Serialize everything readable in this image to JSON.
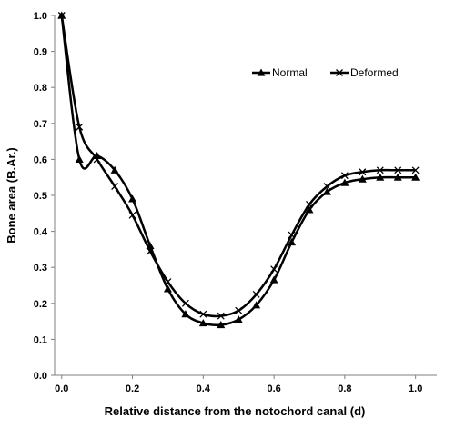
{
  "chart_data": {
    "type": "line",
    "title": "",
    "xlabel": "Relative distance from the notochord canal (d)",
    "ylabel": "Bone area (B.Ar.)",
    "xlim": [
      -0.02,
      1.06
    ],
    "ylim": [
      0.0,
      1.0
    ],
    "xticks": [
      0.0,
      0.2,
      0.4,
      0.6,
      0.8,
      1.0
    ],
    "yticks": [
      0.0,
      0.1,
      0.2,
      0.3,
      0.4,
      0.5,
      0.6,
      0.7,
      0.8,
      0.9,
      1.0
    ],
    "xtick_labels": [
      "0.0",
      "0.2",
      "0.4",
      "0.6",
      "0.8",
      "1.0"
    ],
    "ytick_labels": [
      "0.0",
      "0.1",
      "0.2",
      "0.3",
      "0.4",
      "0.5",
      "0.6",
      "0.7",
      "0.8",
      "0.9",
      "1.0"
    ],
    "grid": false,
    "legend_position": "top-right",
    "x": [
      0.0,
      0.05,
      0.1,
      0.15,
      0.2,
      0.25,
      0.3,
      0.35,
      0.4,
      0.45,
      0.5,
      0.55,
      0.6,
      0.65,
      0.7,
      0.75,
      0.8,
      0.85,
      0.9,
      0.95,
      1.0
    ],
    "series": [
      {
        "name": "Normal",
        "marker": "triangle",
        "color": "#000000",
        "values": [
          1.0,
          0.6,
          0.61,
          0.57,
          0.49,
          0.36,
          0.24,
          0.17,
          0.145,
          0.14,
          0.155,
          0.195,
          0.265,
          0.37,
          0.46,
          0.51,
          0.535,
          0.545,
          0.55,
          0.55,
          0.55
        ]
      },
      {
        "name": "Deformed",
        "marker": "x",
        "color": "#000000",
        "values": [
          1.0,
          0.69,
          0.6,
          0.525,
          0.445,
          0.345,
          0.26,
          0.2,
          0.17,
          0.165,
          0.18,
          0.225,
          0.295,
          0.39,
          0.475,
          0.525,
          0.555,
          0.565,
          0.57,
          0.57,
          0.57
        ]
      }
    ]
  }
}
